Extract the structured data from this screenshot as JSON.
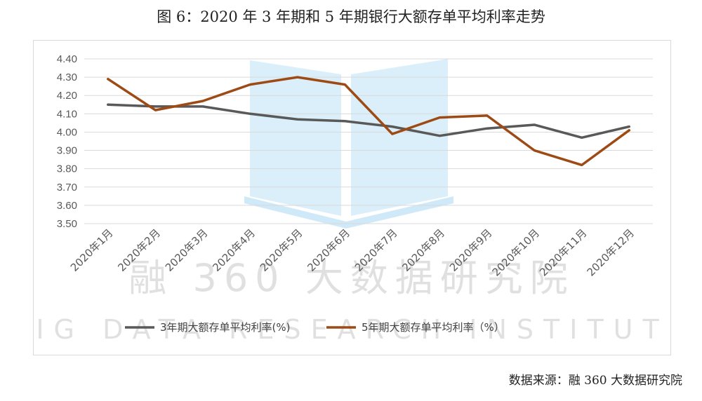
{
  "figure_title": "图 6：2020 年 3 年期和 5 年期银行大额存单平均利率走势",
  "source_note": "数据来源：融 360 大数据研究院",
  "watermark": {
    "cn_text": "融 360 大数据研究院",
    "en_text": "BIG DATA RESEARCH INSTITUTE"
  },
  "chart_data": {
    "type": "line",
    "title": "",
    "xlabel": "",
    "ylabel": "",
    "categories": [
      "2020年1月",
      "2020年2月",
      "2020年3月",
      "2020年4月",
      "2020年5月",
      "2020年6月",
      "2020年7月",
      "2020年8月",
      "2020年9月",
      "2020年10月",
      "2020年11月",
      "2020年12月"
    ],
    "ylim": [
      3.5,
      4.4
    ],
    "yticks": [
      "3.50",
      "3.60",
      "3.70",
      "3.80",
      "3.90",
      "4.00",
      "4.10",
      "4.20",
      "4.30",
      "4.40"
    ],
    "grid": "horizontal",
    "legend_position": "bottom",
    "series": [
      {
        "name": "3年期大额存单平均利率(%)",
        "color": "#595959",
        "values": [
          4.15,
          4.14,
          4.14,
          4.1,
          4.07,
          4.06,
          4.03,
          3.98,
          4.02,
          4.04,
          3.97,
          4.03
        ]
      },
      {
        "name": "5年期大额存单平均利率（%）",
        "color": "#9e4a14",
        "values": [
          4.29,
          4.12,
          4.17,
          4.26,
          4.3,
          4.26,
          3.99,
          4.08,
          4.09,
          3.9,
          3.82,
          4.01
        ]
      }
    ]
  }
}
